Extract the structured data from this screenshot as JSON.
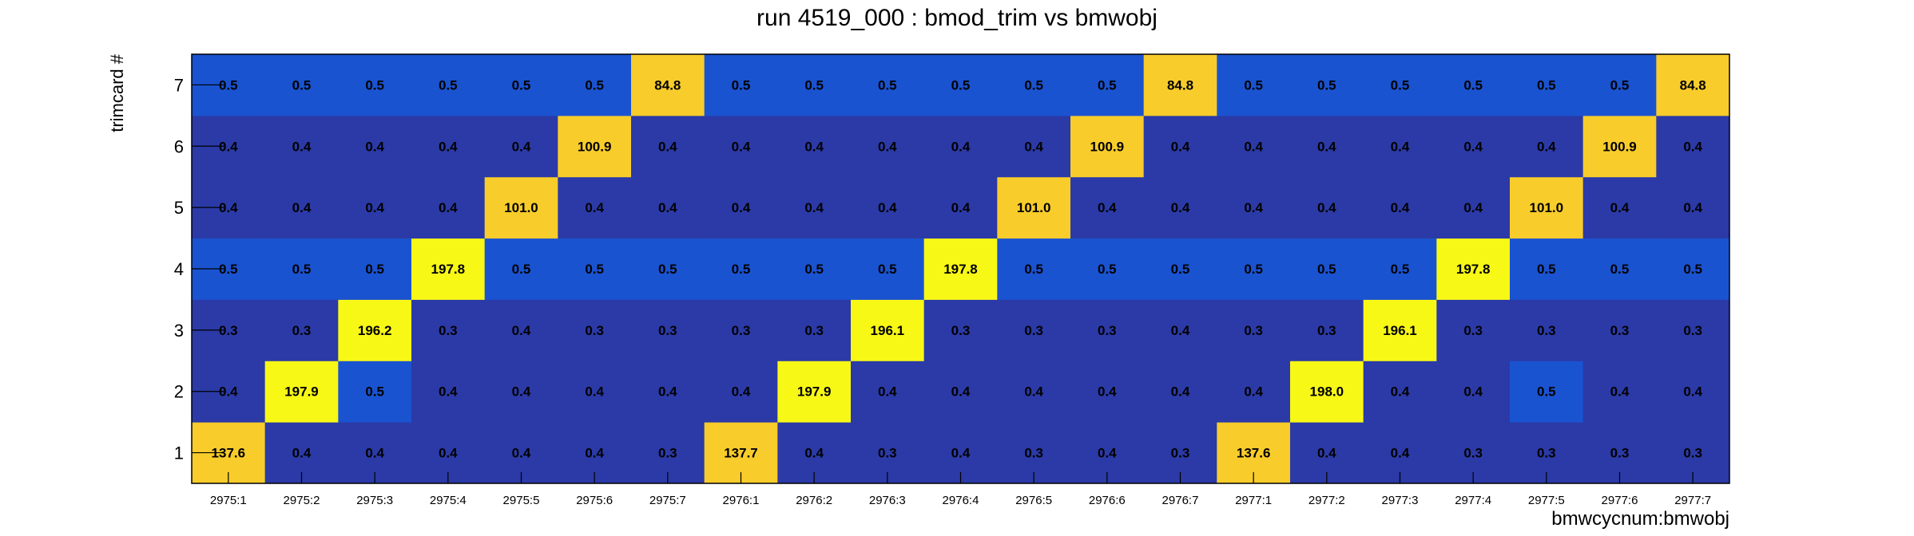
{
  "chart_data": {
    "type": "heatmap",
    "title": "run 4519_000 : bmod_trim vs bmwobj",
    "xlabel": "bmwcycnum:bmwobj",
    "ylabel": "trimcard #",
    "x_categories": [
      "2975:1",
      "2975:2",
      "2975:3",
      "2975:4",
      "2975:5",
      "2975:6",
      "2975:7",
      "2976:1",
      "2976:2",
      "2976:3",
      "2976:4",
      "2976:5",
      "2976:6",
      "2976:7",
      "2977:1",
      "2977:2",
      "2977:3",
      "2977:4",
      "2977:5",
      "2977:6",
      "2977:7"
    ],
    "y_categories": [
      "1",
      "2",
      "3",
      "4",
      "5",
      "6",
      "7"
    ],
    "z": [
      [
        "137.6",
        "0.4",
        "0.4",
        "0.4",
        "0.4",
        "0.4",
        "0.3",
        "137.7",
        "0.4",
        "0.3",
        "0.4",
        "0.3",
        "0.4",
        "0.3",
        "137.6",
        "0.4",
        "0.4",
        "0.3",
        "0.3",
        "0.3",
        "0.3"
      ],
      [
        "0.4",
        "197.9",
        "0.5",
        "0.4",
        "0.4",
        "0.4",
        "0.4",
        "0.4",
        "197.9",
        "0.4",
        "0.4",
        "0.4",
        "0.4",
        "0.4",
        "0.4",
        "198.0",
        "0.4",
        "0.4",
        "0.5",
        "0.4",
        "0.4"
      ],
      [
        "0.3",
        "0.3",
        "196.2",
        "0.3",
        "0.4",
        "0.3",
        "0.3",
        "0.3",
        "0.3",
        "196.1",
        "0.3",
        "0.3",
        "0.3",
        "0.4",
        "0.3",
        "0.3",
        "196.1",
        "0.3",
        "0.3",
        "0.3",
        "0.3"
      ],
      [
        "0.5",
        "0.5",
        "0.5",
        "197.8",
        "0.5",
        "0.5",
        "0.5",
        "0.5",
        "0.5",
        "0.5",
        "197.8",
        "0.5",
        "0.5",
        "0.5",
        "0.5",
        "0.5",
        "0.5",
        "197.8",
        "0.5",
        "0.5",
        "0.5"
      ],
      [
        "0.4",
        "0.4",
        "0.4",
        "0.4",
        "101.0",
        "0.4",
        "0.4",
        "0.4",
        "0.4",
        "0.4",
        "0.4",
        "101.0",
        "0.4",
        "0.4",
        "0.4",
        "0.4",
        "0.4",
        "0.4",
        "101.0",
        "0.4",
        "0.4"
      ],
      [
        "0.4",
        "0.4",
        "0.4",
        "0.4",
        "0.4",
        "100.9",
        "0.4",
        "0.4",
        "0.4",
        "0.4",
        "0.4",
        "0.4",
        "100.9",
        "0.4",
        "0.4",
        "0.4",
        "0.4",
        "0.4",
        "0.4",
        "100.9",
        "0.4"
      ],
      [
        "0.5",
        "0.5",
        "0.5",
        "0.5",
        "0.5",
        "0.5",
        "84.8",
        "0.5",
        "0.5",
        "0.5",
        "0.5",
        "0.5",
        "0.5",
        "84.8",
        "0.5",
        "0.5",
        "0.5",
        "0.5",
        "0.5",
        "0.5",
        "84.8"
      ]
    ],
    "palette": {
      "dark_blue": "#2b3aa6",
      "blue": "#1a53d0",
      "orange": "#f8cc2b",
      "yellow": "#f8f816"
    },
    "grid": false,
    "legend": "none"
  }
}
